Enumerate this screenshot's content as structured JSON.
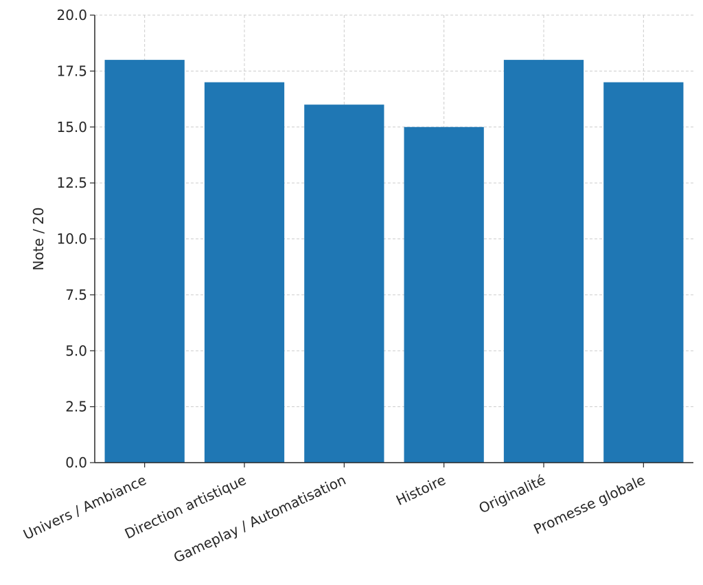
{
  "chart_data": {
    "type": "bar",
    "title": "",
    "xlabel": "",
    "ylabel": "Note / 20",
    "categories": [
      "Univers / Ambiance",
      "Direction artistique",
      "Gameplay / Automatisation",
      "Histoire",
      "Originalité",
      "Promesse globale"
    ],
    "values": [
      18,
      17,
      16,
      15,
      18,
      17
    ],
    "ylim": [
      0,
      20
    ],
    "yticks": [
      "0.0",
      "2.5",
      "5.0",
      "7.5",
      "10.0",
      "12.5",
      "15.0",
      "17.5",
      "20.0"
    ],
    "grid": true,
    "legend": "none",
    "colors": {
      "bar": "#1f77b4",
      "grid": "#cccccc",
      "axis": "#262626"
    }
  }
}
